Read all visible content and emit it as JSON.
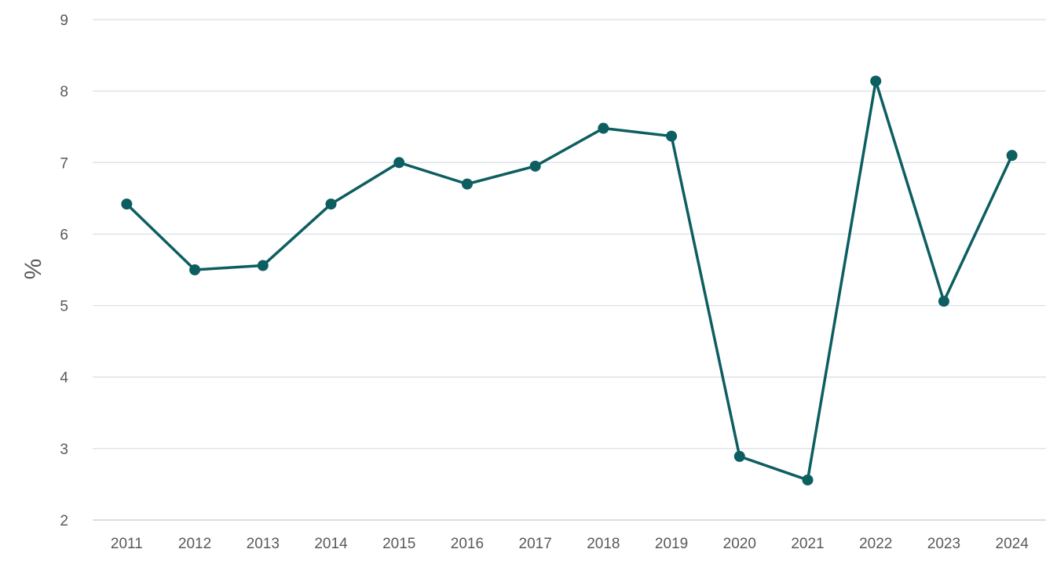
{
  "chart_data": {
    "type": "line",
    "title": "",
    "xlabel": "",
    "ylabel": "%",
    "ylim": [
      2,
      9
    ],
    "yticks": [
      2,
      3,
      4,
      5,
      6,
      7,
      8,
      9
    ],
    "grid": true,
    "legend": "none",
    "categories": [
      "2011",
      "2012",
      "2013",
      "2014",
      "2015",
      "2016",
      "2017",
      "2018",
      "2019",
      "2020",
      "2021",
      "2022",
      "2023",
      "2024"
    ],
    "series": [
      {
        "color": "#0d5e60",
        "values": [
          6.42,
          5.5,
          5.56,
          6.42,
          7.0,
          6.7,
          6.95,
          7.48,
          7.37,
          2.89,
          2.56,
          8.14,
          5.06,
          7.1
        ]
      }
    ]
  }
}
